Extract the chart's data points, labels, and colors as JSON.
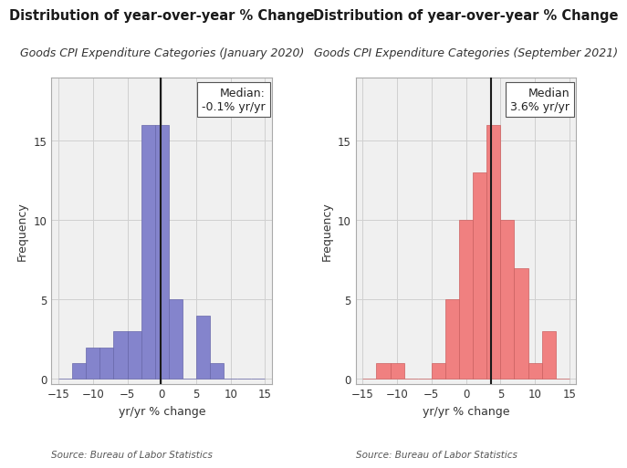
{
  "left": {
    "title": "Distribution of year-over-year % Change",
    "subtitle": "Goods CPI Expenditure Categories (January 2020)",
    "bar_color": "#8484cc",
    "bar_edge_color": "#6666aa",
    "median_line": -0.1,
    "median_label": "Median:\n-0.1% yr/yr",
    "xlabel": "yr/yr % change",
    "ylabel": "Frequency",
    "source": "Source: Bureau of Labor Statistics",
    "bins": [
      -15,
      -13,
      -11,
      -9,
      -7,
      -5,
      -3,
      -1,
      1,
      3,
      5,
      7,
      9,
      11,
      13,
      15
    ],
    "counts": [
      0,
      1,
      2,
      2,
      3,
      3,
      16,
      16,
      5,
      0,
      4,
      1,
      0,
      0,
      0
    ],
    "ylim": [
      -0.3,
      19
    ],
    "yticks": [
      0,
      5,
      10,
      15
    ],
    "xlim": [
      -16,
      16
    ],
    "xticks": [
      -15,
      -10,
      -5,
      0,
      5,
      10,
      15
    ]
  },
  "right": {
    "title": "Distribution of year-over-year % Change",
    "subtitle": "Goods CPI Expenditure Categories (September 2021)",
    "bar_color": "#f08080",
    "bar_edge_color": "#cc6060",
    "median_line": 3.6,
    "median_label": "Median\n3.6% yr/yr",
    "xlabel": "yr/yr % change",
    "ylabel": "Frequency",
    "source": "Source: Bureau of Labor Statistics",
    "bins": [
      -15,
      -13,
      -11,
      -9,
      -7,
      -5,
      -3,
      -1,
      1,
      3,
      5,
      7,
      9,
      11,
      13,
      15
    ],
    "counts": [
      0,
      1,
      1,
      0,
      0,
      1,
      5,
      10,
      13,
      16,
      10,
      7,
      1,
      3,
      0
    ],
    "ylim": [
      -0.3,
      19
    ],
    "yticks": [
      0,
      5,
      10,
      15
    ],
    "xlim": [
      -16,
      16
    ],
    "xticks": [
      -15,
      -10,
      -5,
      0,
      5,
      10,
      15
    ]
  },
  "bg_color": "#f0f0f0",
  "grid_color": "#d0d0d0",
  "title_fontsize": 10.5,
  "subtitle_fontsize": 9.0,
  "label_fontsize": 9,
  "tick_fontsize": 8.5,
  "source_fontsize": 7.5,
  "annotation_fontsize": 9
}
